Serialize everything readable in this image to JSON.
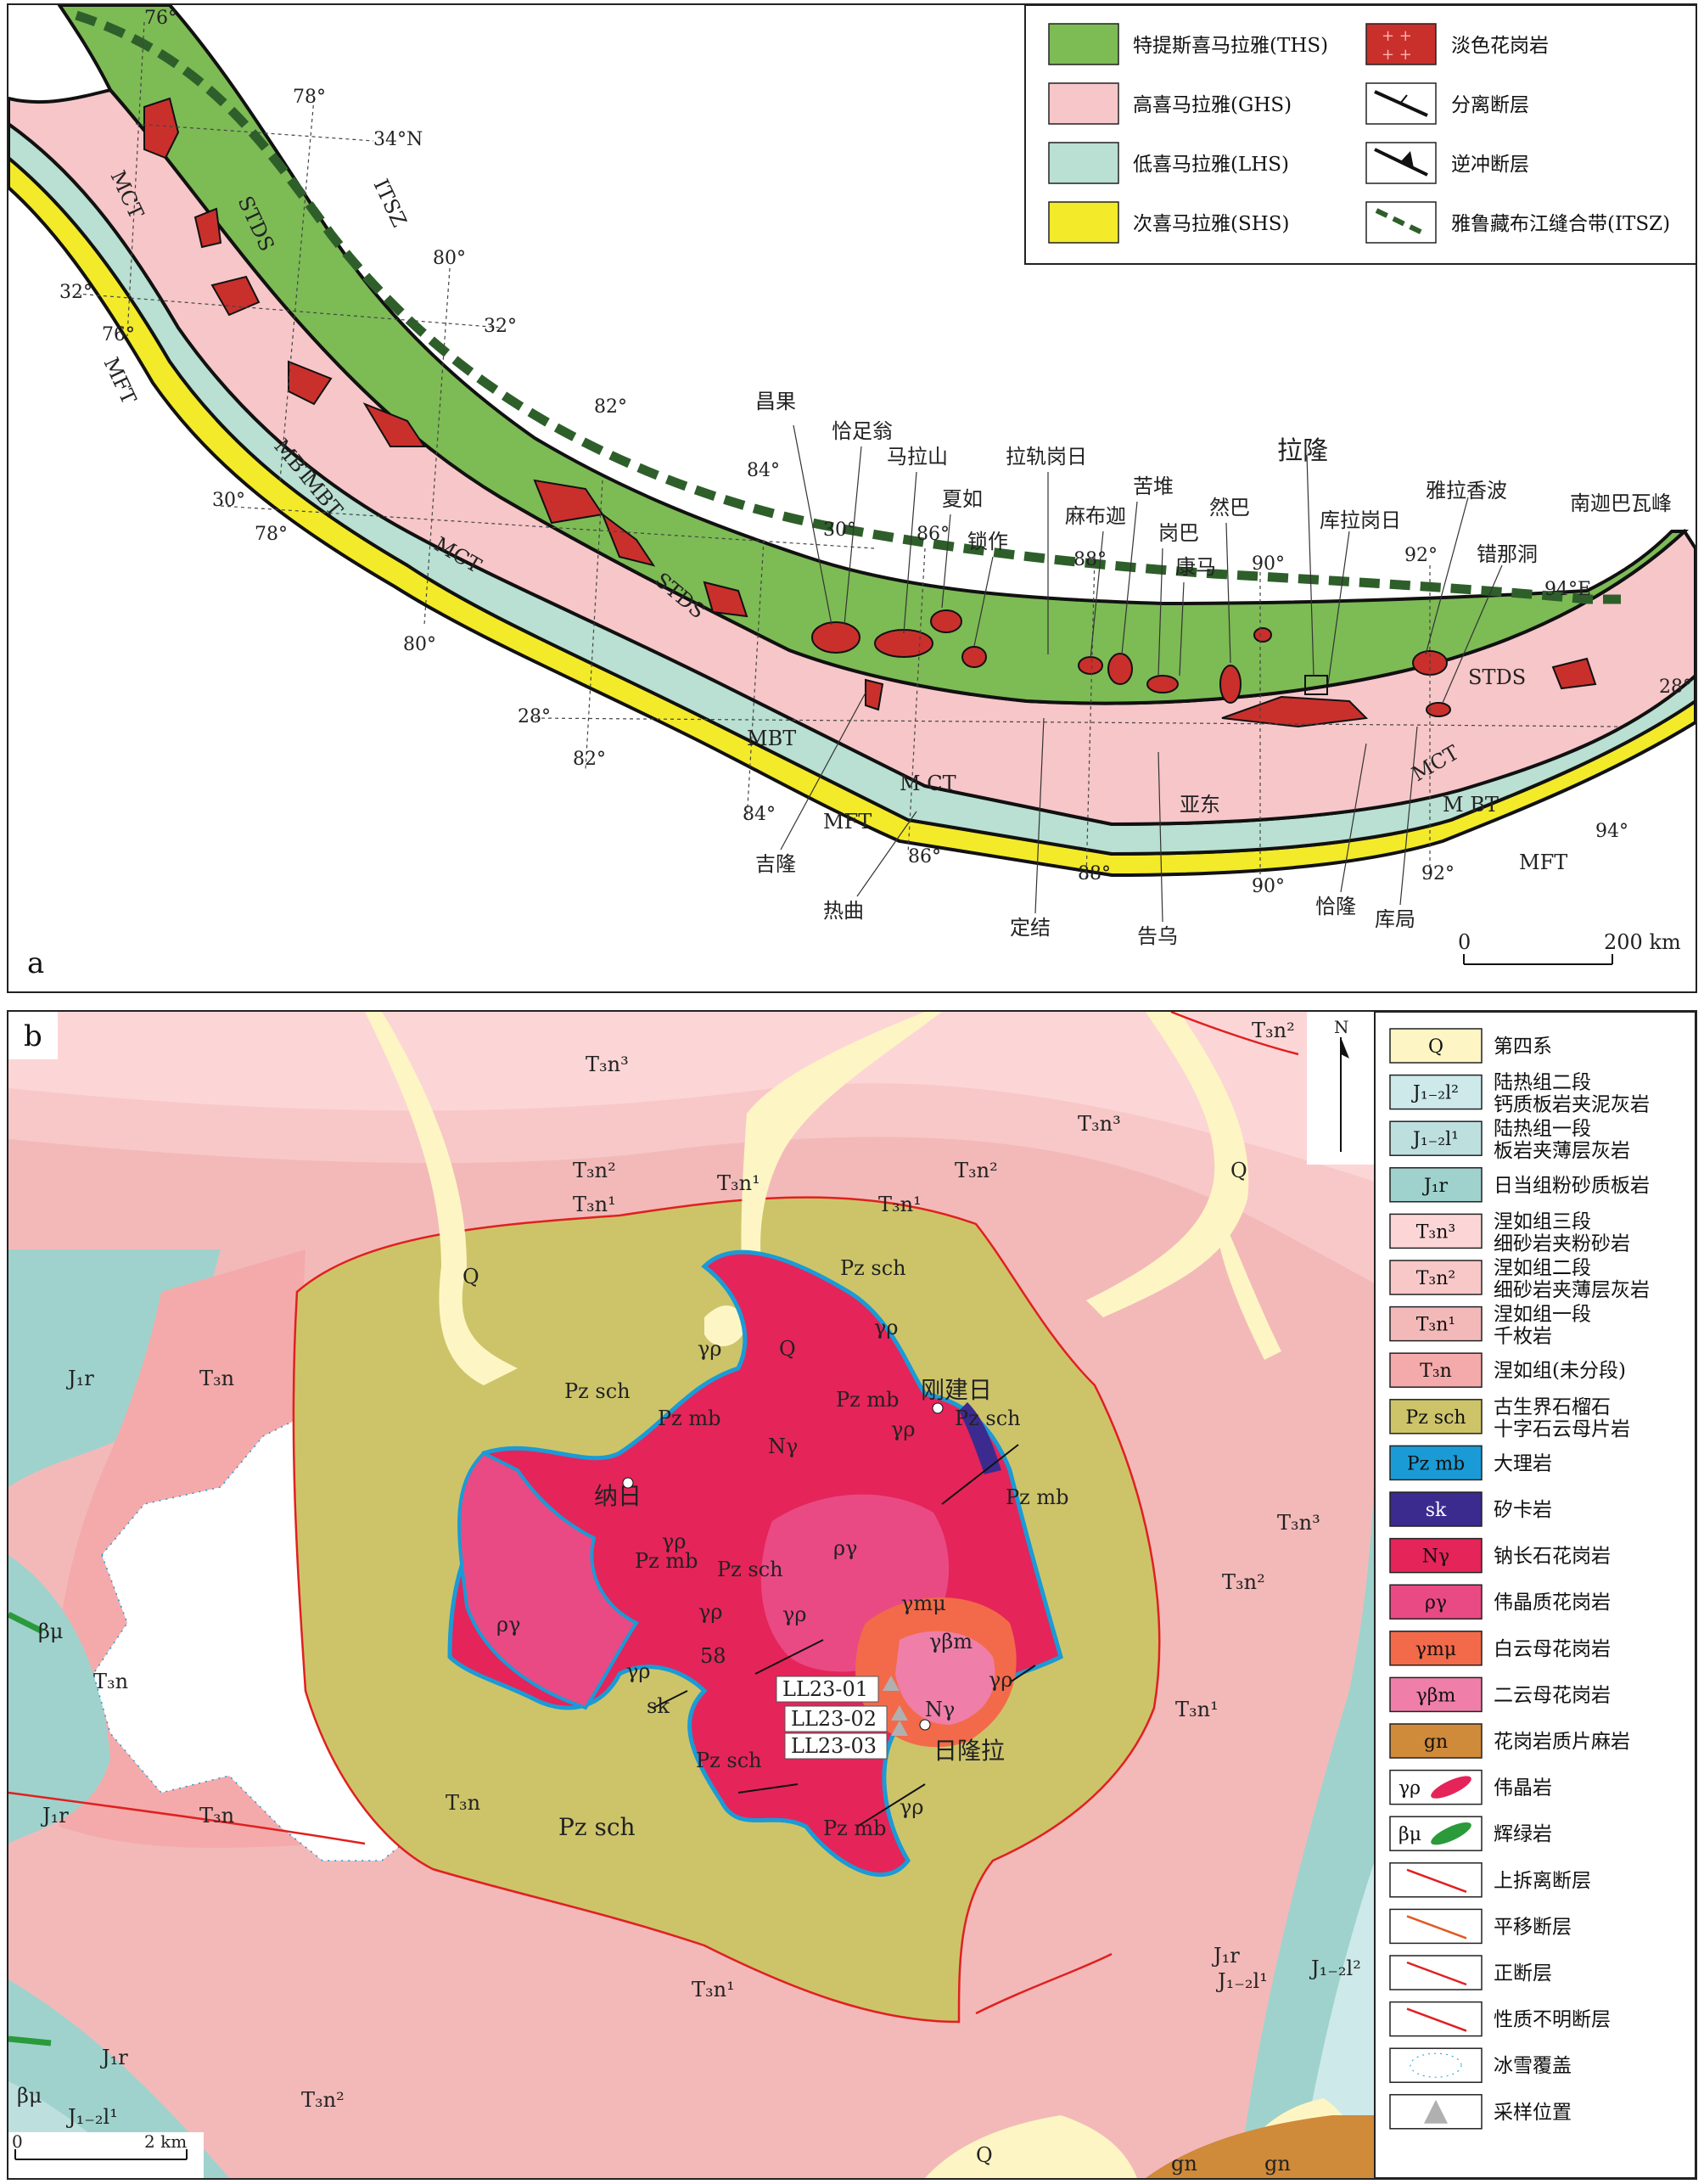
{
  "panel_a": {
    "panel_label": "a",
    "legend": [
      {
        "label": "特提斯喜马拉雅(THS)",
        "color": "#7dbb55",
        "symbol": "fill"
      },
      {
        "label": "高喜马拉雅(GHS)",
        "color": "#f7c6c8",
        "symbol": "fill"
      },
      {
        "label": "低喜马拉雅(LHS)",
        "color": "#b9e0d2",
        "symbol": "fill"
      },
      {
        "label": "次喜马拉雅(SHS)",
        "color": "#f3ea2a",
        "symbol": "fill"
      },
      {
        "label": "淡色花岗岩",
        "color": "#d42e2e",
        "symbol": "granite"
      },
      {
        "label": "分离断层",
        "color": "#111111",
        "symbol": "detachment"
      },
      {
        "label": "逆冲断层",
        "color": "#111111",
        "symbol": "thrust"
      },
      {
        "label": "雅鲁藏布江缝合带(ITSZ)",
        "color": "#2e5f2a",
        "symbol": "suture"
      }
    ],
    "fault_labels": [
      "MCT",
      "STDS",
      "ITSZ",
      "MFT",
      "MBT",
      "MBT",
      "MCT",
      "STDS",
      "MBT",
      "MFT",
      "M CT",
      "STDS",
      "MCT",
      "M BT",
      "MFT"
    ],
    "coordinates": [
      "76°",
      "78°",
      "34°N",
      "32°",
      "76°",
      "80°",
      "32°",
      "82°",
      "84°",
      "30°",
      "30°",
      "78°",
      "86°",
      "88°",
      "90°",
      "92°",
      "94°E",
      "28°",
      "28°",
      "80°",
      "82°",
      "84°",
      "86°",
      "88°",
      "90°",
      "92°",
      "94°"
    ],
    "places_north": [
      "昌果",
      "恰足翁",
      "马拉山",
      "夏如",
      "锁作",
      "拉轨岗日",
      "麻布迦",
      "苦堆",
      "岗巴",
      "康马",
      "然巴",
      "拉隆",
      "库拉岗日",
      "雅拉香波",
      "错那洞",
      "南迦巴瓦峰"
    ],
    "places_south": [
      "吉隆",
      "热曲",
      "定结",
      "告乌",
      "亚东",
      "恰隆",
      "库局"
    ],
    "scale_bar": {
      "start": "0",
      "end": "200 km"
    }
  },
  "panel_b": {
    "panel_label": "b",
    "north": "N",
    "legend": [
      {
        "sym": "Q",
        "l1": "第四系",
        "l2": "",
        "color": "#fdf6c4"
      },
      {
        "sym": "J₁₋₂l²",
        "l1": "陆热组二段",
        "l2": "钙质板岩夹泥灰岩",
        "color": "#cde9ea"
      },
      {
        "sym": "J₁₋₂l¹",
        "l1": "陆热组一段",
        "l2": "板岩夹薄层灰岩",
        "color": "#bde0df"
      },
      {
        "sym": "J₁r",
        "l1": "日当组粉砂质板岩",
        "l2": "",
        "color": "#9fd2cd"
      },
      {
        "sym": "T₃n³",
        "l1": "涅如组三段",
        "l2": "细砂岩夹粉砂岩",
        "color": "#fcd6d6"
      },
      {
        "sym": "T₃n²",
        "l1": "涅如组二段",
        "l2": "细砂岩夹薄层灰岩",
        "color": "#f8c8c8"
      },
      {
        "sym": "T₃n¹",
        "l1": "涅如组一段",
        "l2": "千枚岩",
        "color": "#f3b9b9"
      },
      {
        "sym": "T₃n",
        "l1": "涅如组(未分段)",
        "l2": "",
        "color": "#f4aaaa"
      },
      {
        "sym": "Pz sch",
        "l1": "古生界石榴石",
        "l2": "十字石云母片岩",
        "color": "#cdc46a"
      },
      {
        "sym": "Pz mb",
        "l1": "大理岩",
        "l2": "",
        "color": "#1a9bd6"
      },
      {
        "sym": "sk",
        "l1": "矽卡岩",
        "l2": "",
        "color": "#3b2b8f"
      },
      {
        "sym": "Nγ",
        "l1": "钠长石花岗岩",
        "l2": "",
        "color": "#e5245a"
      },
      {
        "sym": "ργ",
        "l1": "伟晶质花岗岩",
        "l2": "",
        "color": "#e94a84"
      },
      {
        "sym": "γmμ",
        "l1": "白云母花岗岩",
        "l2": "",
        "color": "#f26a4a"
      },
      {
        "sym": "γβm",
        "l1": "二云母花岗岩",
        "l2": "",
        "color": "#ef7fa8"
      },
      {
        "sym": "gn",
        "l1": "花岗岩质片麻岩",
        "l2": "",
        "color": "#cf8a3a"
      },
      {
        "sym": "γρ",
        "l1": "伟晶岩",
        "l2": "",
        "color": "#e5245a"
      },
      {
        "sym": "βμ",
        "l1": "辉绿岩",
        "l2": "",
        "color": "#2a9a3a"
      },
      {
        "sym": "",
        "l1": "上拆离断层",
        "l2": "",
        "color": "#e02020"
      },
      {
        "sym": "",
        "l1": "平移断层",
        "l2": "",
        "color": "#e05a20"
      },
      {
        "sym": "",
        "l1": "正断层",
        "l2": "",
        "color": "#e02020"
      },
      {
        "sym": "",
        "l1": "性质不明断层",
        "l2": "",
        "color": "#e02020"
      },
      {
        "sym": "",
        "l1": "冰雪覆盖",
        "l2": "",
        "color": "#1a9bd6"
      },
      {
        "sym": "",
        "l1": "采样位置",
        "l2": "",
        "color": "#b0b0b0"
      }
    ],
    "map_labels": {
      "T3n3": "T₃n³",
      "T3n2": "T₃n²",
      "T3n1": "T₃n¹",
      "T3n": "T₃n",
      "J1r": "J₁r",
      "J12l1": "J₁₋₂l¹",
      "J12l2": "J₁₋₂l²",
      "Q": "Q",
      "Pzsch": "Pz sch",
      "Pzmb": "Pz mb",
      "Ngamma": "Nγ",
      "rhogamma": "ργ",
      "gammarho": "γρ",
      "gmu": "γmμ",
      "gbm": "γβm",
      "sk": "sk",
      "betamu": "βμ",
      "gn": "gn",
      "dip": "58"
    },
    "places": [
      "纳日",
      "刚建日",
      "日隆拉"
    ],
    "samples": [
      "LL23-01",
      "LL23-02",
      "LL23-03"
    ],
    "scale_bar": {
      "start": "0",
      "end": "2 km"
    }
  }
}
